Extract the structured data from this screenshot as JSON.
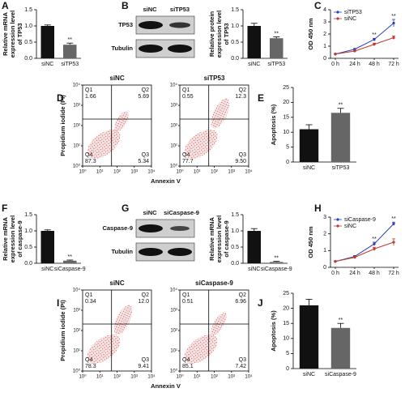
{
  "chart_data": [
    {
      "type": "bar",
      "panel": "A",
      "ylabel": [
        "Relative mRNA",
        "expression level",
        "of TP53"
      ],
      "categories": [
        "siNC",
        "siTP53"
      ],
      "values": [
        1.0,
        0.42
      ],
      "errors": [
        0.03,
        0.05
      ],
      "significance": [
        null,
        "**"
      ],
      "colors": [
        "#111111",
        "#666666"
      ],
      "ylim": [
        0,
        1.5
      ],
      "yticks": [
        {
          "value": 0,
          "label": "0.0"
        },
        {
          "value": 0.5,
          "label": "0.5"
        },
        {
          "value": 1,
          "label": "1.0"
        },
        {
          "value": 1.5,
          "label": "1.5"
        }
      ]
    },
    {
      "type": "bar",
      "ylabel": [
        "Relative protein",
        "expression level",
        "of TP53"
      ],
      "categories": [
        "siNC",
        "siTP53"
      ],
      "values": [
        1.0,
        0.62
      ],
      "errors": [
        0.08,
        0.04
      ],
      "significance": [
        null,
        "**"
      ],
      "colors": [
        "#111111",
        "#666666"
      ],
      "ylim": [
        0,
        1.5
      ],
      "yticks": [
        {
          "value": 0,
          "label": "0.0"
        },
        {
          "value": 0.5,
          "label": "0.5"
        },
        {
          "value": 1,
          "label": "1.0"
        },
        {
          "value": 1.5,
          "label": "1.5"
        }
      ]
    },
    {
      "type": "line",
      "panel": "C",
      "ylabel": "OD 450 nm",
      "categories": [
        "0 h",
        "24 h",
        "48 h",
        "72 h"
      ],
      "series": [
        {
          "name": "siTP53",
          "color": "#2c3fb5",
          "values": [
            0.35,
            0.75,
            1.55,
            2.9
          ],
          "errors": [
            0.03,
            0.06,
            0.1,
            0.3
          ],
          "significance": [
            null,
            null,
            "**",
            "**"
          ]
        },
        {
          "name": "siNC",
          "color": "#c0392b",
          "values": [
            0.35,
            0.6,
            1.15,
            1.7
          ],
          "errors": [
            0.03,
            0.05,
            0.1,
            0.15
          ]
        }
      ],
      "ylim": [
        0,
        4
      ],
      "yticks": [
        0,
        1,
        2,
        3,
        4
      ]
    },
    {
      "type": "flow",
      "panel": "D",
      "xlabel": "Annexin V",
      "ylabel": "Propidium iodide (PI)",
      "xlim": [
        1,
        10000
      ],
      "ylim": [
        1,
        10000
      ],
      "log": true,
      "xticks": [
        {
          "value": 1,
          "label": "10⁰"
        },
        {
          "value": 10,
          "label": "10¹"
        },
        {
          "value": 100,
          "label": "10²"
        },
        {
          "value": 1000,
          "label": "10³"
        },
        {
          "value": 10000,
          "label": "10⁴"
        }
      ],
      "yticks": [
        {
          "value": 1,
          "label": "10⁰"
        },
        {
          "value": 10,
          "label": "10¹"
        },
        {
          "value": 100,
          "label": "10²"
        },
        {
          "value": 1000,
          "label": "10³"
        },
        {
          "value": 10000,
          "label": "10⁴"
        }
      ],
      "plots": [
        {
          "title": "siNC",
          "quadrants": [
            "Q1",
            "Q2",
            "Q4",
            "Q3"
          ],
          "values": [
            1.66,
            5.69,
            87.3,
            5.34
          ],
          "value_labels": [
            "1.66",
            "5.69",
            "87.3",
            "5.34"
          ]
        },
        {
          "title": "siTP53",
          "quadrants": [
            "Q1",
            "Q2",
            "Q4",
            "Q3"
          ],
          "values": [
            0.55,
            12.3,
            77.7,
            9.5
          ],
          "value_labels": [
            "0.55",
            "12.3",
            "77.7",
            "9.50"
          ]
        }
      ]
    },
    {
      "type": "bar",
      "panel": "E",
      "ylabel": "Apoptosis (%)",
      "categories": [
        "siNC",
        "siTP53"
      ],
      "values": [
        11,
        16.5
      ],
      "errors": [
        1.5,
        1.5
      ],
      "significance": [
        null,
        "**"
      ],
      "colors": [
        "#111111",
        "#666666"
      ],
      "ylim": [
        0,
        25
      ],
      "yticks": [
        0,
        5,
        10,
        15,
        20,
        25
      ]
    },
    {
      "type": "bar",
      "panel": "F",
      "ylabel": [
        "Relative mRNA",
        "expression level",
        "of caspase-9"
      ],
      "categories": [
        "siNC",
        "siCaspase-9"
      ],
      "values": [
        1.0,
        0.08
      ],
      "errors": [
        0.03,
        0.02
      ],
      "significance": [
        null,
        "**"
      ],
      "colors": [
        "#111111",
        "#666666"
      ],
      "ylim": [
        0,
        1.5
      ],
      "yticks": [
        {
          "value": 0,
          "label": "0.0"
        },
        {
          "value": 0.5,
          "label": "0.5"
        },
        {
          "value": 1,
          "label": "1.0"
        },
        {
          "value": 1.5,
          "label": "1.5"
        }
      ]
    },
    {
      "type": "bar",
      "ylabel": [
        "Relative mRNA",
        "expression level",
        "of caspase-9"
      ],
      "categories": [
        "siNC",
        "siCaspase-9"
      ],
      "values": [
        1.0,
        0.04
      ],
      "errors": [
        0.07,
        0.02
      ],
      "significance": [
        null,
        "**"
      ],
      "colors": [
        "#111111",
        "#666666"
      ],
      "ylim": [
        0,
        1.5
      ],
      "yticks": [
        {
          "value": 0,
          "label": "0.0"
        },
        {
          "value": 0.5,
          "label": "0.5"
        },
        {
          "value": 1,
          "label": "1.0"
        },
        {
          "value": 1.5,
          "label": "1.5"
        }
      ]
    },
    {
      "type": "line",
      "panel": "H",
      "ylabel": "OD 450 nm",
      "categories": [
        "0 h",
        "24 h",
        "48 h",
        "72 h"
      ],
      "series": [
        {
          "name": "siCaspase-9",
          "color": "#2c3fb5",
          "values": [
            0.35,
            0.65,
            1.4,
            2.6
          ],
          "errors": [
            0.03,
            0.05,
            0.1,
            0.1
          ],
          "significance": [
            null,
            null,
            "**",
            "**"
          ]
        },
        {
          "name": "siNC",
          "color": "#c0392b",
          "values": [
            0.35,
            0.6,
            1.1,
            1.5
          ],
          "errors": [
            0.03,
            0.05,
            0.1,
            0.2
          ]
        }
      ],
      "ylim": [
        0,
        3
      ],
      "yticks": [
        0,
        1,
        2,
        3
      ]
    },
    {
      "type": "flow",
      "panel": "I",
      "xlabel": "Annexin V",
      "ylabel": "Propidium iodide (PI)",
      "xlim": [
        1,
        10000
      ],
      "ylim": [
        1,
        10000
      ],
      "log": true,
      "xticks": [
        {
          "value": 1,
          "label": "10⁰"
        },
        {
          "value": 10,
          "label": "10¹"
        },
        {
          "value": 100,
          "label": "10²"
        },
        {
          "value": 1000,
          "label": "10³"
        },
        {
          "value": 10000,
          "label": "10⁴"
        }
      ],
      "yticks": [
        {
          "value": 1,
          "label": "10⁰"
        },
        {
          "value": 10,
          "label": "10¹"
        },
        {
          "value": 100,
          "label": "10²"
        },
        {
          "value": 1000,
          "label": "10³"
        },
        {
          "value": 10000,
          "label": "10⁴"
        }
      ],
      "plots": [
        {
          "title": "siNC",
          "quadrants": [
            "Q1",
            "Q2",
            "Q4",
            "Q3"
          ],
          "values": [
            0.34,
            12.0,
            78.3,
            9.41
          ],
          "value_labels": [
            "0.34",
            "12.0",
            "78.3",
            "9.41"
          ]
        },
        {
          "title": "siCaspase-9",
          "quadrants": [
            "Q1",
            "Q2",
            "Q4",
            "Q3"
          ],
          "values": [
            0.51,
            6.96,
            85.1,
            7.42
          ],
          "value_labels": [
            "0.51",
            "6.96",
            "85.1",
            "7.42"
          ]
        }
      ]
    },
    {
      "type": "bar",
      "panel": "J",
      "ylabel": "Apoptosis (%)",
      "categories": [
        "siNC",
        "siCaspase-9"
      ],
      "values": [
        21,
        13.5
      ],
      "errors": [
        2,
        1.5
      ],
      "significance": [
        null,
        "**"
      ],
      "colors": [
        "#111111",
        "#666666"
      ],
      "ylim": [
        0,
        25
      ],
      "yticks": [
        0,
        5,
        10,
        15,
        20,
        25
      ]
    }
  ],
  "blots": [
    {
      "panel": "B",
      "lanes": [
        "siNC",
        "siTP53"
      ],
      "rows": [
        "TP53",
        "Tubulin"
      ]
    },
    {
      "panel": "G",
      "lanes": [
        "siNC",
        "siCaspase-9"
      ],
      "rows": [
        "Caspase-9",
        "Tubulin"
      ]
    }
  ]
}
